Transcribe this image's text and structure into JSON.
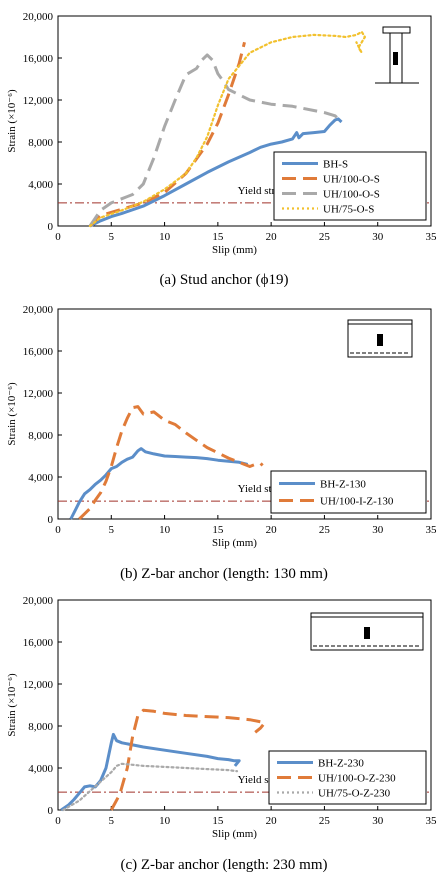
{
  "chart_data": [
    {
      "type": "line",
      "caption": "(a) Stud anchor (ϕ19)",
      "xlabel": "Slip (mm)",
      "ylabel": "Strain (×10⁻⁶)",
      "xlim": [
        0,
        35
      ],
      "ylim": [
        0,
        20000
      ],
      "xticks": [
        0,
        5,
        10,
        15,
        20,
        25,
        30,
        35
      ],
      "yticks": [
        0,
        4000,
        8000,
        12000,
        16000,
        20000
      ],
      "xtick_labels": [
        "0",
        "5",
        "10",
        "15",
        "20",
        "25",
        "30",
        "35"
      ],
      "ytick_labels": [
        "0",
        "4,000",
        "8,000",
        "12,000",
        "16,000",
        "20,000"
      ],
      "grid": false,
      "legend_position": "bottom-right",
      "annotation": "Yield strain",
      "yield_strain": 2200,
      "series": [
        {
          "name": "BH-S",
          "color": "#5b8ec9",
          "style": "solid",
          "x": [
            3.0,
            4,
            5,
            6,
            8,
            10,
            12,
            14,
            16,
            18,
            19,
            20,
            21,
            22,
            22.4,
            22.6,
            23,
            24,
            25,
            25.5,
            26.0,
            26.3,
            26.6
          ],
          "y": [
            0,
            500,
            900,
            1200,
            1900,
            2900,
            4000,
            5100,
            6100,
            7000,
            7500,
            7800,
            8000,
            8300,
            8900,
            8400,
            8800,
            8900,
            9000,
            9600,
            10100,
            10200,
            9900
          ]
        },
        {
          "name": "UH/100-O-S",
          "color": "#e07b39",
          "style": "dashed",
          "x": [
            3.0,
            4,
            6,
            8,
            10,
            12,
            14,
            15,
            16,
            17,
            17.5
          ],
          "y": [
            0,
            1000,
            1600,
            2200,
            3200,
            5000,
            7800,
            9800,
            12500,
            15500,
            17500
          ]
        },
        {
          "name": "UH/100-O-S",
          "color": "#a9a9a9",
          "style": "dashed",
          "x": [
            3.0,
            4,
            5,
            6,
            7,
            8,
            9,
            10,
            11,
            12,
            13,
            13.5,
            14,
            14.5,
            15,
            15.5,
            16,
            17,
            18,
            20,
            22,
            24,
            25,
            26,
            26.5
          ],
          "y": [
            0,
            1500,
            2200,
            2600,
            3000,
            4000,
            6500,
            9500,
            12000,
            14400,
            15000,
            15800,
            16300,
            15800,
            14500,
            13800,
            13000,
            12500,
            12000,
            11600,
            11400,
            11000,
            10800,
            10500,
            10000
          ]
        },
        {
          "name": "UH/75-O-S",
          "color": "#f2c12e",
          "style": "dotted",
          "x": [
            3.0,
            4,
            6,
            8,
            10,
            12,
            13,
            14,
            15,
            16,
            18,
            20,
            22,
            24,
            26,
            27,
            28,
            28.5,
            28.8,
            28.2,
            28.5,
            28.0
          ],
          "y": [
            0,
            800,
            1500,
            2300,
            3500,
            5000,
            6500,
            8500,
            11500,
            14000,
            16500,
            17500,
            18000,
            18200,
            18100,
            18000,
            18200,
            18500,
            18000,
            17000,
            16500,
            17500
          ]
        }
      ]
    },
    {
      "type": "line",
      "caption": "(b) Z-bar anchor (length: 130 mm)",
      "xlabel": "Slip (mm)",
      "ylabel": "Strain (×10⁻⁶)",
      "xlim": [
        0,
        35
      ],
      "ylim": [
        0,
        20000
      ],
      "xticks": [
        0,
        5,
        10,
        15,
        20,
        25,
        30,
        35
      ],
      "yticks": [
        0,
        4000,
        8000,
        12000,
        16000,
        20000
      ],
      "xtick_labels": [
        "0",
        "5",
        "10",
        "15",
        "20",
        "25",
        "30",
        "35"
      ],
      "ytick_labels": [
        "0",
        "4,000",
        "8,000",
        "12,000",
        "16,000",
        "20,000"
      ],
      "grid": false,
      "legend_position": "bottom-right",
      "annotation": "Yield strain",
      "yield_strain": 1700,
      "series": [
        {
          "name": "BH-Z-130",
          "color": "#5b8ec9",
          "style": "solid",
          "x": [
            1.2,
            1.6,
            2,
            2.5,
            3,
            3.5,
            4,
            4.5,
            5,
            5.5,
            6,
            6.5,
            7,
            7.5,
            7.8,
            8.2,
            9,
            10,
            11,
            12,
            13,
            14,
            15,
            16,
            17,
            17.8
          ],
          "y": [
            0,
            800,
            1600,
            2400,
            2800,
            3300,
            3700,
            4200,
            4800,
            5000,
            5400,
            5700,
            5900,
            6500,
            6700,
            6400,
            6200,
            6000,
            5950,
            5900,
            5850,
            5750,
            5600,
            5500,
            5400,
            5200
          ]
        },
        {
          "name": "UH/100-I-Z-130",
          "color": "#e07b39",
          "style": "dashed",
          "x": [
            2.0,
            2.5,
            3,
            3.5,
            4,
            4.5,
            5,
            5.5,
            6,
            6.5,
            7,
            7.5,
            8,
            8.5,
            9,
            9.5,
            10,
            11,
            12,
            13,
            14,
            15,
            16,
            17,
            18,
            18.5,
            19,
            19.2
          ],
          "y": [
            0,
            500,
            1000,
            1800,
            2500,
            3600,
            5000,
            6800,
            8400,
            9600,
            10600,
            10700,
            10000,
            10100,
            10200,
            9800,
            9400,
            9000,
            8200,
            7500,
            6800,
            6300,
            5800,
            5400,
            5000,
            5200,
            5300,
            5100
          ]
        }
      ]
    },
    {
      "type": "line",
      "caption": "(c) Z-bar anchor (length: 230 mm)",
      "xlabel": "Slip (mm)",
      "ylabel": "Strain (×10⁻⁶)",
      "xlim": [
        0,
        35
      ],
      "ylim": [
        0,
        20000
      ],
      "xticks": [
        0,
        5,
        10,
        15,
        20,
        25,
        30,
        35
      ],
      "yticks": [
        0,
        4000,
        8000,
        12000,
        16000,
        20000
      ],
      "xtick_labels": [
        "0",
        "5",
        "10",
        "15",
        "20",
        "25",
        "30",
        "35"
      ],
      "ytick_labels": [
        "0",
        "4,000",
        "8,000",
        "12,000",
        "16,000",
        "20,000"
      ],
      "grid": false,
      "legend_position": "bottom-right",
      "annotation": "Yield strain",
      "yield_strain": 1700,
      "series": [
        {
          "name": "BH-Z-230",
          "color": "#5b8ec9",
          "style": "solid",
          "x": [
            0.3,
            1,
            1.5,
            2,
            2.5,
            3,
            3.5,
            4,
            4.5,
            5,
            5.2,
            5.5,
            6,
            7,
            8,
            10,
            12,
            14,
            15,
            16,
            16.5,
            17,
            16.6
          ],
          "y": [
            0,
            500,
            1000,
            1600,
            2200,
            2300,
            2200,
            2800,
            4000,
            6400,
            7200,
            6600,
            6400,
            6200,
            6000,
            5700,
            5400,
            5100,
            4900,
            4800,
            4700,
            4700,
            4200
          ]
        },
        {
          "name": "UH/100-O-Z-230",
          "color": "#e07b39",
          "style": "dashed",
          "x": [
            5.0,
            5.8,
            6.5,
            7.0,
            7.5,
            8,
            9,
            10,
            12,
            14,
            16,
            18,
            19,
            19.4,
            19.0,
            18.5
          ],
          "y": [
            0,
            1500,
            4000,
            7000,
            9000,
            9500,
            9400,
            9200,
            9000,
            8900,
            8800,
            8600,
            8400,
            8300,
            7800,
            7400
          ]
        },
        {
          "name": "UH/75-O-Z-230",
          "color": "#a9a9a9",
          "style": "dotted",
          "x": [
            0.5,
            1,
            2,
            3,
            4,
            5,
            5.5,
            6,
            7,
            8,
            10,
            12,
            14,
            16,
            16.8
          ],
          "y": [
            0,
            300,
            900,
            1800,
            2700,
            3600,
            4200,
            4400,
            4300,
            4200,
            4100,
            4000,
            3900,
            3800,
            3700
          ]
        }
      ]
    }
  ]
}
